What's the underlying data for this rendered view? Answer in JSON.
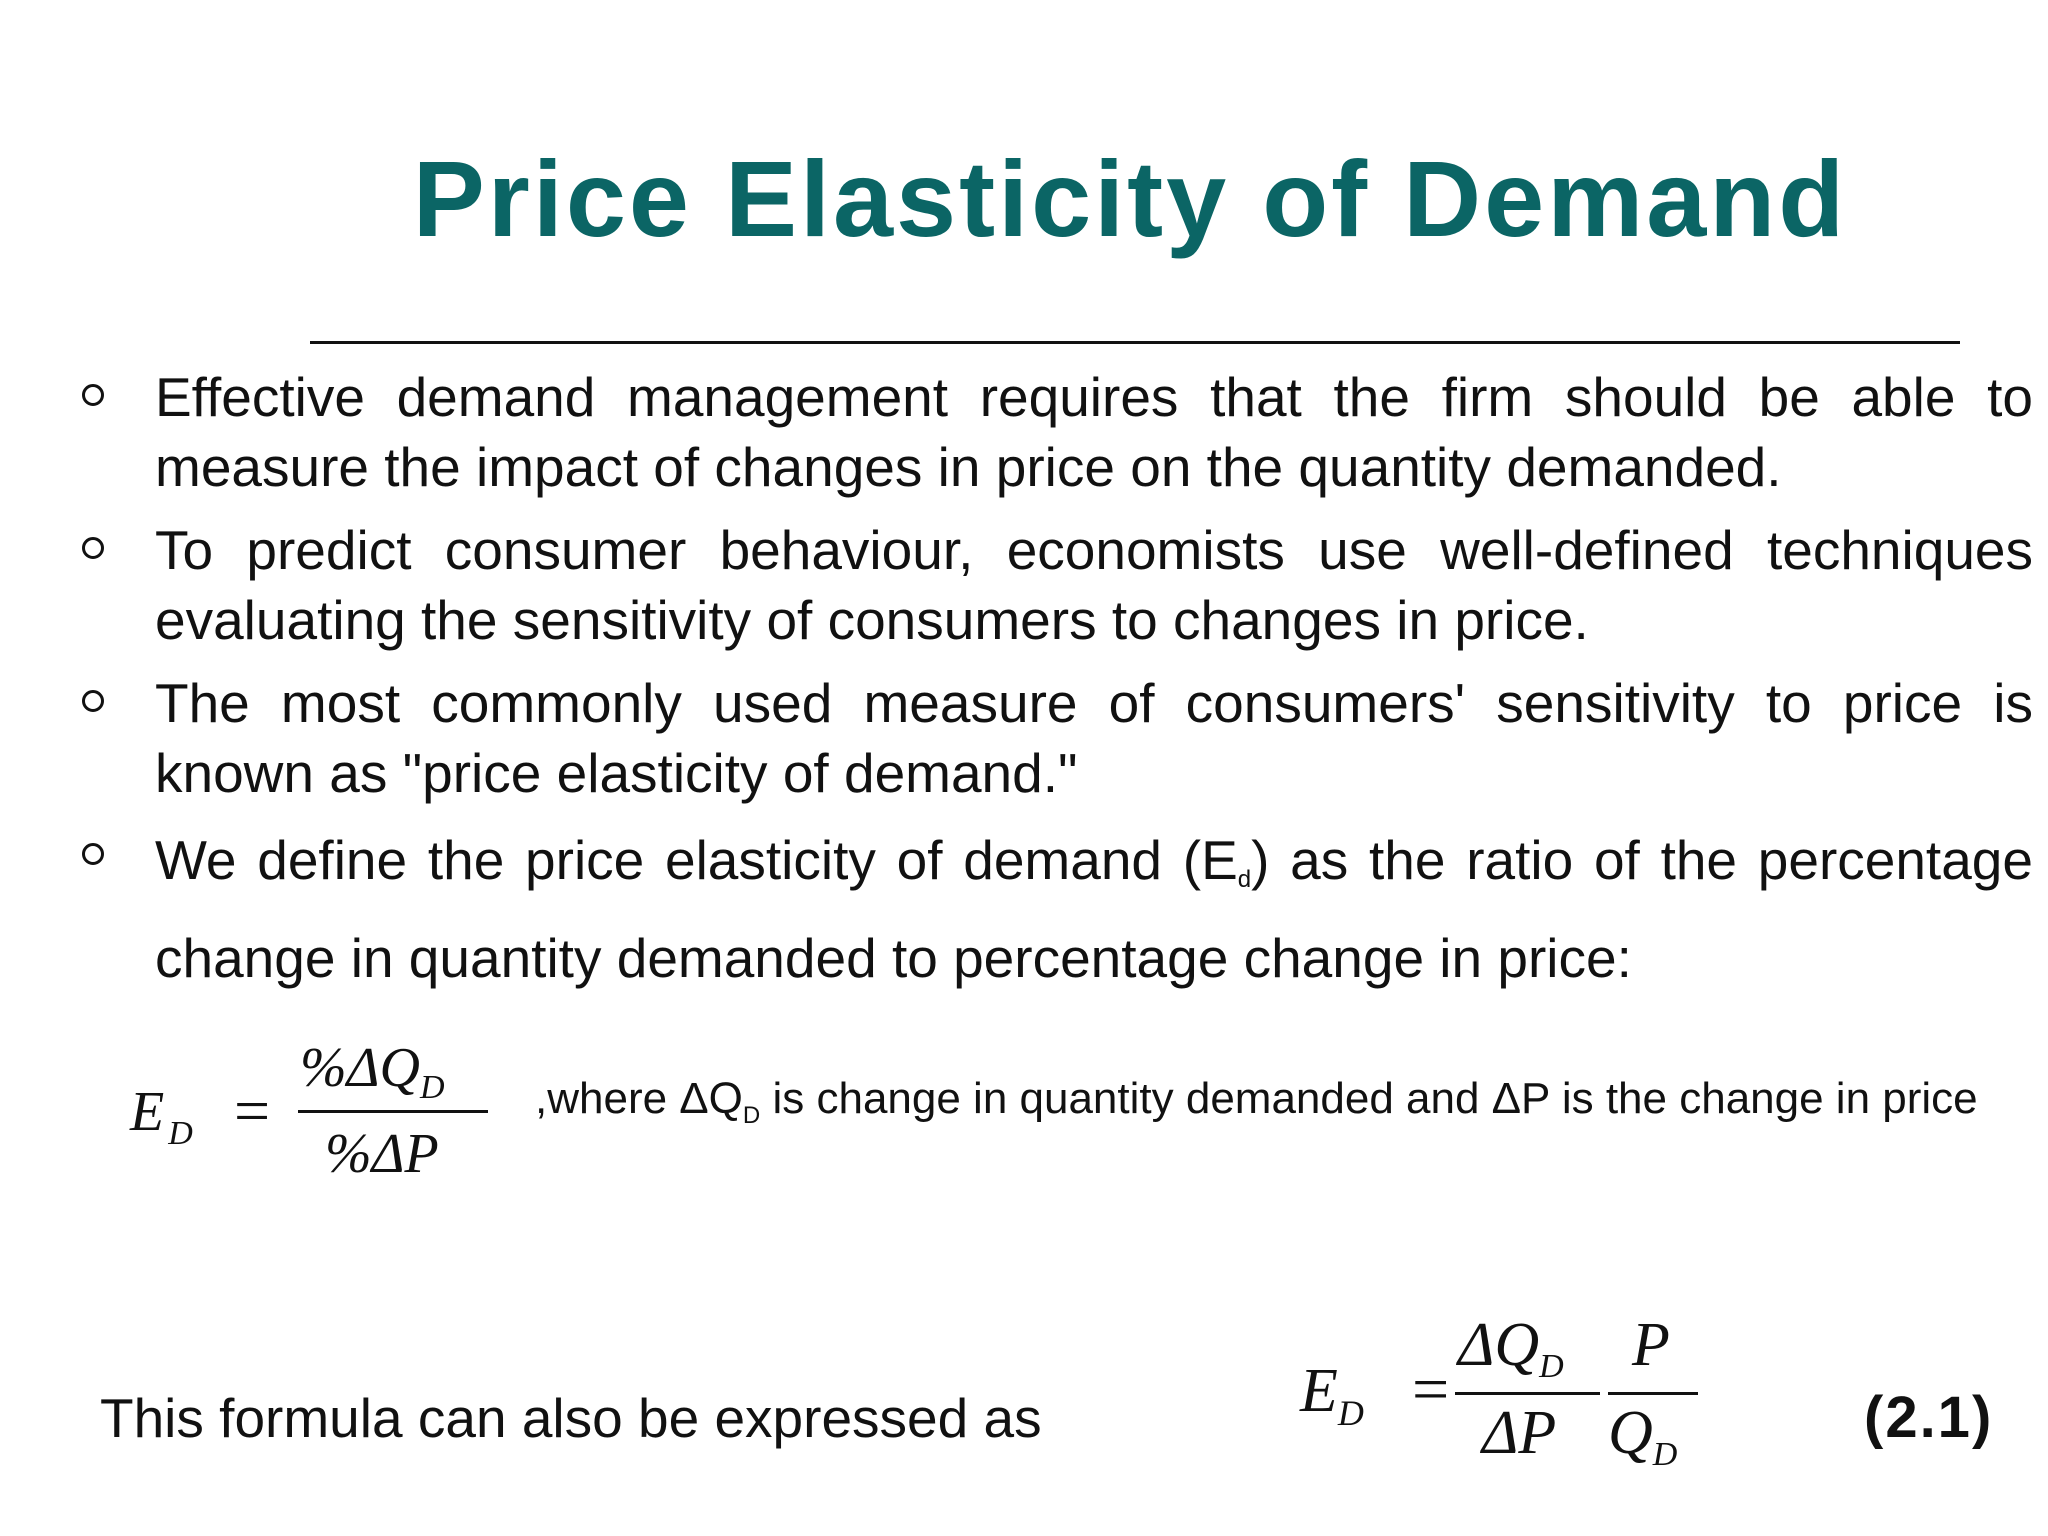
{
  "title": "Price Elasticity of Demand",
  "bullets": [
    {
      "text": "Effective demand management requires that the firm should be able to measure the impact of changes in price on the quantity demanded."
    },
    {
      "text": "To predict consumer behaviour, economists use well-defined techniques evaluating the sensitivity of consumers to changes in price."
    },
    {
      "text": "The most commonly used measure of consumers' sensitivity to price is known as \"price elasticity of demand.\""
    },
    {
      "before": "We define the price elasticity of demand (E",
      "sub": "d",
      "after": ") as the ratio of the percentage change in quantity demanded to percentage change in price:"
    }
  ],
  "formula1": {
    "lhs": "E",
    "lhs_sub": "D",
    "equals": "=",
    "numerator": "%ΔQ",
    "numerator_sub": "D",
    "denominator": "%ΔP",
    "explanation_before": ",where ΔQ",
    "explanation_sub": "D",
    "explanation_after": " is change in quantity demanded and ΔP is the change in price"
  },
  "also_text": "This formula can also be expressed as",
  "formula2": {
    "lhs": "E",
    "lhs_sub": "D",
    "equals": "=",
    "frac1_num": "ΔQ",
    "frac1_num_sub": "D",
    "frac1_den": "ΔP",
    "frac2_num": "P",
    "frac2_den": "Q",
    "frac2_den_sub": "D"
  },
  "equation_number": "(2.1)"
}
